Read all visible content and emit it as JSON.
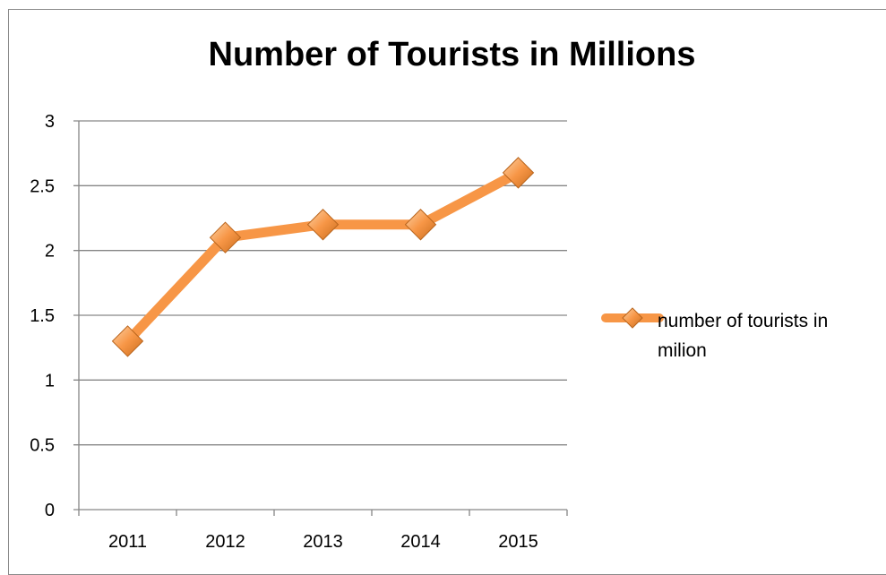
{
  "chart_data": {
    "type": "line",
    "title": "Number of Tourists in Millions",
    "categories": [
      "2011",
      "2012",
      "2013",
      "2014",
      "2015"
    ],
    "series": [
      {
        "name": "number of tourists in milion",
        "values": [
          1.3,
          2.1,
          2.2,
          2.2,
          2.6
        ]
      }
    ],
    "ylim": [
      0,
      3
    ],
    "yticks": [
      "0",
      "0.5",
      "1",
      "1.5",
      "2",
      "2.5",
      "3"
    ],
    "grid": true,
    "legend_position": "right",
    "colors": {
      "line": "#F79646",
      "marker": "#F79646",
      "grid": "#868686"
    }
  }
}
